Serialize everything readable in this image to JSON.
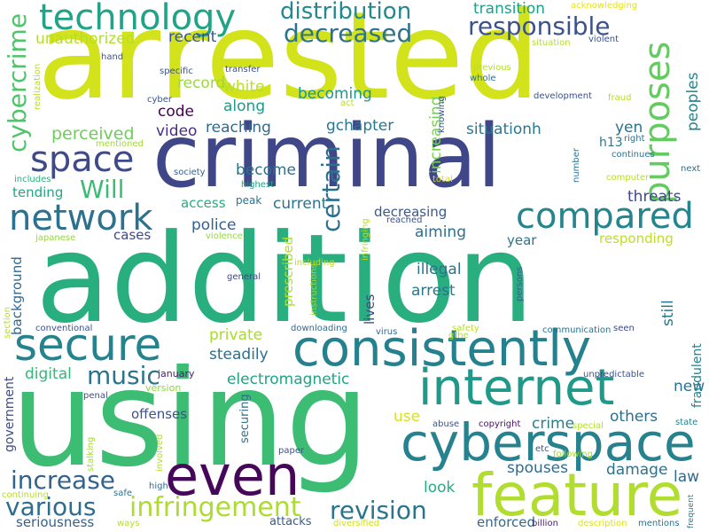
{
  "words": [
    {
      "id": "arrested",
      "text": "arrested",
      "color": "#d2e21b"
    },
    {
      "id": "addition",
      "text": "addition",
      "color": "#29af7f"
    },
    {
      "id": "using",
      "text": "using",
      "color": "#3dbc74"
    },
    {
      "id": "criminal",
      "text": "criminal",
      "color": "#3f4788"
    },
    {
      "id": "cyberspace",
      "text": "cyberspace",
      "color": "#26828e"
    },
    {
      "id": "internet",
      "text": "internet",
      "color": "#1f9a8a"
    },
    {
      "id": "consistently",
      "text": "consistently",
      "color": "#26818e"
    },
    {
      "id": "feature",
      "text": "feature",
      "color": "#b0dd2f"
    },
    {
      "id": "even",
      "text": "even",
      "color": "#46075a"
    },
    {
      "id": "secure",
      "text": "secure",
      "color": "#25838e"
    },
    {
      "id": "technology",
      "text": "technology",
      "color": "#20a386"
    },
    {
      "id": "network",
      "text": "network",
      "color": "#2c728e"
    },
    {
      "id": "compared",
      "text": "compared",
      "color": "#25858e"
    },
    {
      "id": "purposes",
      "text": "purposes",
      "color": "#63cb5f"
    },
    {
      "id": "space",
      "text": "space",
      "color": "#3e4a89"
    },
    {
      "id": "infringement",
      "text": "infringement",
      "color": "#addc30"
    },
    {
      "id": "distribution",
      "text": "distribution",
      "color": "#23898e"
    },
    {
      "id": "decreased",
      "text": "decreased",
      "color": "#2d718e"
    },
    {
      "id": "responsible",
      "text": "responsible",
      "color": "#3b528b"
    },
    {
      "id": "various",
      "text": "various",
      "color": "#2f6c8e"
    },
    {
      "id": "increase",
      "text": "increase",
      "color": "#33638d"
    },
    {
      "id": "revision",
      "text": "revision",
      "color": "#2b748e"
    },
    {
      "id": "cybercrime",
      "text": "cybercrime",
      "color": "#50c46a"
    },
    {
      "id": "certain",
      "text": "certain",
      "color": "#2e6f8e"
    },
    {
      "id": "music",
      "text": "music",
      "color": "#2c738e"
    },
    {
      "id": "will",
      "text": "Will",
      "color": "#3cbb75"
    },
    {
      "id": "unauthorized",
      "text": "unauthorized",
      "color": "#b5de2b"
    },
    {
      "id": "transition",
      "text": "transition",
      "color": "#1fa088"
    },
    {
      "id": "acknowledging",
      "text": "acknowledging",
      "color": "#e7e419"
    },
    {
      "id": "recent",
      "text": "recent",
      "color": "#3a548c"
    },
    {
      "id": "record",
      "text": "record",
      "color": "#9bd93c"
    },
    {
      "id": "white",
      "text": "white",
      "color": "#b8de29"
    },
    {
      "id": "along",
      "text": "along",
      "color": "#1e9c89"
    },
    {
      "id": "code",
      "text": "code",
      "color": "#440154"
    },
    {
      "id": "becoming",
      "text": "becoming",
      "color": "#1f958b"
    },
    {
      "id": "perceived",
      "text": "perceived",
      "color": "#6ece58"
    },
    {
      "id": "video",
      "text": "video",
      "color": "#472f7d"
    },
    {
      "id": "reaching",
      "text": "reaching",
      "color": "#306a8e"
    },
    {
      "id": "gchapter",
      "text": "gchapter",
      "color": "#2b758e"
    },
    {
      "id": "situationh",
      "text": "situationh",
      "color": "#2a778e"
    },
    {
      "id": "increasing",
      "text": "increasing",
      "color": "#75d054"
    },
    {
      "id": "yen",
      "text": "yen",
      "color": "#2c728e"
    },
    {
      "id": "h13",
      "text": "h13",
      "color": "#2a788e"
    },
    {
      "id": "peoples",
      "text": "peoples",
      "color": "#25848e"
    },
    {
      "id": "become",
      "text": "become",
      "color": "#2d708e"
    },
    {
      "id": "police",
      "text": "police",
      "color": "#355f8d"
    },
    {
      "id": "access",
      "text": "access",
      "color": "#27ad81"
    },
    {
      "id": "peak",
      "text": "peak",
      "color": "#2c728e"
    },
    {
      "id": "current",
      "text": "current",
      "color": "#2c738e"
    },
    {
      "id": "decreasing",
      "text": "decreasing",
      "color": "#38598c"
    },
    {
      "id": "aiming",
      "text": "aiming",
      "color": "#2e6e8e"
    },
    {
      "id": "threats",
      "text": "threats",
      "color": "#3e4989"
    },
    {
      "id": "responding",
      "text": "responding",
      "color": "#bddf26"
    },
    {
      "id": "cases",
      "text": "cases",
      "color": "#3e4989"
    },
    {
      "id": "tending",
      "text": "tending",
      "color": "#22a785"
    },
    {
      "id": "year",
      "text": "year",
      "color": "#2c738e"
    },
    {
      "id": "illegal",
      "text": "illegal",
      "color": "#2c728e"
    },
    {
      "id": "arrest",
      "text": "arrest",
      "color": "#2a778e"
    },
    {
      "id": "private",
      "text": "private",
      "color": "#a8db34"
    },
    {
      "id": "steadily",
      "text": "steadily",
      "color": "#2e6e8e"
    },
    {
      "id": "electromagnetic",
      "text": "electromagnetic",
      "color": "#20a486"
    },
    {
      "id": "digital",
      "text": "digital",
      "color": "#34b679"
    },
    {
      "id": "prescribed",
      "text": "prescribed",
      "color": "#b5de2b"
    },
    {
      "id": "lives",
      "text": "lives",
      "color": "#3e4989"
    },
    {
      "id": "still",
      "text": "still",
      "color": "#2b758e"
    },
    {
      "id": "background",
      "text": "background",
      "color": "#31688e"
    },
    {
      "id": "government",
      "text": "government",
      "color": "#3e4c8a"
    },
    {
      "id": "new",
      "text": "new",
      "color": "#2c728e"
    },
    {
      "id": "fraudulent",
      "text": "fraudulent",
      "color": "#26828e"
    },
    {
      "id": "use",
      "text": "use",
      "color": "#d8e219"
    },
    {
      "id": "crime",
      "text": "crime",
      "color": "#287d8e"
    },
    {
      "id": "others",
      "text": "others",
      "color": "#2d708e"
    },
    {
      "id": "spouses",
      "text": "spouses",
      "color": "#2f6c8e"
    },
    {
      "id": "damage",
      "text": "damage",
      "color": "#2c728e"
    },
    {
      "id": "law",
      "text": "law",
      "color": "#31688e"
    },
    {
      "id": "look",
      "text": "look",
      "color": "#27ad81"
    },
    {
      "id": "offenses",
      "text": "offenses",
      "color": "#3b528b"
    },
    {
      "id": "seriousness",
      "text": "seriousness",
      "color": "#355f8d"
    },
    {
      "id": "enforced",
      "text": "enforced",
      "color": "#31688e"
    },
    {
      "id": "attacks",
      "text": "attacks",
      "color": "#365c8d"
    },
    {
      "id": "securing",
      "text": "securing",
      "color": "#2c718e"
    },
    {
      "id": "january",
      "text": "january",
      "color": "#482173"
    },
    {
      "id": "version",
      "text": "version",
      "color": "#8fd744"
    },
    {
      "id": "penal",
      "text": "penal",
      "color": "#3d4e8a"
    },
    {
      "id": "stalking",
      "text": "stalking",
      "color": "#9fda3a"
    },
    {
      "id": "involved",
      "text": "involved",
      "color": "#b0dd2f"
    },
    {
      "id": "safe",
      "text": "safe",
      "color": "#2d718e"
    },
    {
      "id": "high",
      "text": "high",
      "color": "#31688e"
    },
    {
      "id": "continuing",
      "text": "continuing",
      "color": "#b5de2b"
    },
    {
      "id": "ways",
      "text": "ways",
      "color": "#b5de2b"
    },
    {
      "id": "paper",
      "text": "paper",
      "color": "#3b528b"
    },
    {
      "id": "diversified",
      "text": "diversified",
      "color": "#d0e11c"
    },
    {
      "id": "billion",
      "text": "billion",
      "color": "#482475"
    },
    {
      "id": "description",
      "text": "description",
      "color": "#dde318"
    },
    {
      "id": "mentions",
      "text": "mentions",
      "color": "#2c728e"
    },
    {
      "id": "frequent",
      "text": "frequent",
      "color": "#287d8e"
    },
    {
      "id": "copyright",
      "text": "copyright",
      "color": "#471063"
    },
    {
      "id": "special",
      "text": "special",
      "color": "#b5de2b"
    },
    {
      "id": "state",
      "text": "state",
      "color": "#26828e"
    },
    {
      "id": "abuse",
      "text": "abuse",
      "color": "#3a548c"
    },
    {
      "id": "etc",
      "text": "etc",
      "color": "#3b528b"
    },
    {
      "id": "following",
      "text": "following",
      "color": "#9fda3a"
    },
    {
      "id": "unpredictable",
      "text": "unpredictable",
      "color": "#3b528b"
    },
    {
      "id": "communication",
      "text": "communication",
      "color": "#2c728e"
    },
    {
      "id": "seen",
      "text": "seen",
      "color": "#3e4989"
    },
    {
      "id": "safety",
      "text": "safety",
      "color": "#b8de29"
    },
    {
      "id": "gthe",
      "text": "gthe",
      "color": "#b5de2b"
    },
    {
      "id": "virus",
      "text": "virus",
      "color": "#31688e"
    },
    {
      "id": "downloading",
      "text": "downloading",
      "color": "#31688e"
    },
    {
      "id": "instructions",
      "text": "instructions",
      "color": "#95d840"
    },
    {
      "id": "persons",
      "text": "persons",
      "color": "#355f8d"
    },
    {
      "id": "conventional",
      "text": "conventional",
      "color": "#3b528b"
    },
    {
      "id": "section",
      "text": "section",
      "color": "#b5de2b"
    },
    {
      "id": "general",
      "text": "general",
      "color": "#3e4989"
    },
    {
      "id": "including",
      "text": "including",
      "color": "#b5de2b"
    },
    {
      "id": "infringing",
      "text": "infringing",
      "color": "#b5de2b"
    },
    {
      "id": "reached",
      "text": "reached",
      "color": "#3b528b"
    },
    {
      "id": "japanese",
      "text": "japanese",
      "color": "#95d840"
    },
    {
      "id": "violence",
      "text": "violence",
      "color": "#95d840"
    },
    {
      "id": "society",
      "text": "society",
      "color": "#355f8d"
    },
    {
      "id": "highest",
      "text": "highest",
      "color": "#20a386"
    },
    {
      "id": "includes",
      "text": "includes",
      "color": "#29af7f"
    },
    {
      "id": "mentioned",
      "text": "mentioned",
      "color": "#9fda3a"
    },
    {
      "id": "cyber",
      "text": "cyber",
      "color": "#3b528b"
    },
    {
      "id": "act",
      "text": "act",
      "color": "#b5de2b"
    },
    {
      "id": "specific",
      "text": "specific",
      "color": "#3b528b"
    },
    {
      "id": "transfer",
      "text": "transfer",
      "color": "#3b528b"
    },
    {
      "id": "realization",
      "text": "realization",
      "color": "#b5de2b"
    },
    {
      "id": "hand",
      "text": "hand",
      "color": "#3b528b"
    },
    {
      "id": "previous",
      "text": "previous",
      "color": "#b5de2b"
    },
    {
      "id": "whole",
      "text": "whole",
      "color": "#2c728e"
    },
    {
      "id": "knowing",
      "text": "knowing",
      "color": "#3b528b"
    },
    {
      "id": "development",
      "text": "development",
      "color": "#3b528b"
    },
    {
      "id": "fraud",
      "text": "fraud",
      "color": "#b5de2b"
    },
    {
      "id": "situation",
      "text": "situation",
      "color": "#b5de2b"
    },
    {
      "id": "violent",
      "text": "violent",
      "color": "#3b528b"
    },
    {
      "id": "right",
      "text": "right",
      "color": "#2c728e"
    },
    {
      "id": "continues",
      "text": "continues",
      "color": "#2c728e"
    },
    {
      "id": "number",
      "text": "number",
      "color": "#2c728e"
    },
    {
      "id": "computer",
      "text": "computer",
      "color": "#b5de2b"
    },
    {
      "id": "next",
      "text": "next",
      "color": "#2c728e"
    },
    {
      "id": "total",
      "text": "total",
      "color": "#d8e219"
    }
  ]
}
